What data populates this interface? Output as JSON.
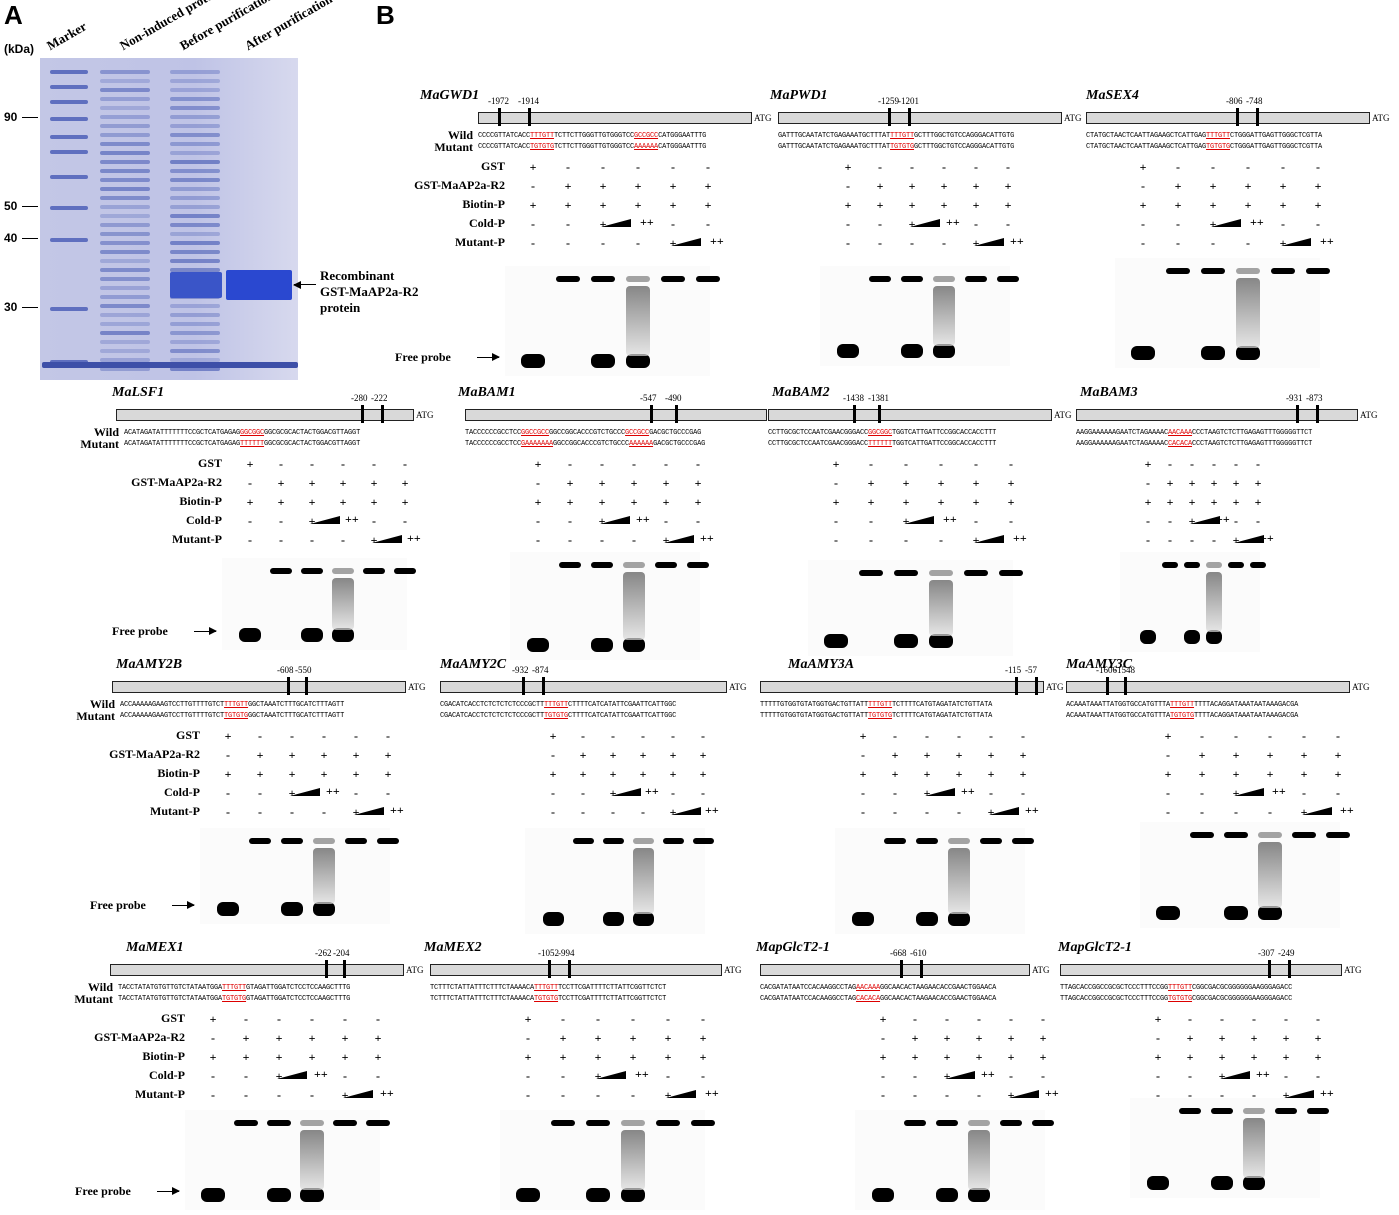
{
  "panelA": {
    "letter": "A",
    "unit": "(kDa)",
    "lanes": [
      "Marker",
      "Non-induced protein",
      "Before purification",
      "After purification"
    ],
    "markers": [
      "90",
      "50",
      "40",
      "30"
    ],
    "annotation": [
      "Recombinant",
      "GST-MaAP2a-R2",
      "protein"
    ]
  },
  "panelB": {
    "letter": "B",
    "row_labels": {
      "wild": "Wild",
      "mutant": "Mutant",
      "gst": "GST",
      "protein": "GST-MaAP2a-R2",
      "biotin": "Biotin-P",
      "cold": "Cold-P",
      "mutantp": "Mutant-P"
    },
    "free_probe": "Free probe",
    "atg": "ATG",
    "symbols": {
      "gst": [
        "+",
        "-",
        "-",
        "-",
        "-",
        "-"
      ],
      "protein": [
        "-",
        "+",
        "+",
        "+",
        "+",
        "+"
      ],
      "biotin": [
        "+",
        "+",
        "+",
        "+",
        "+",
        "+"
      ],
      "cold": [
        "-",
        "-",
        "+",
        "++",
        "-",
        "-"
      ],
      "mutantp": [
        "-",
        "-",
        "-",
        "-",
        "+",
        "++"
      ]
    },
    "genes": [
      {
        "name": "MaGWD1",
        "pos": [
          "-1972",
          "-1914"
        ],
        "wild": [
          "CCCCGTTATCACC",
          "TTTGTT",
          "TCTTCTTGGGTTGTGGGTCC",
          "GCCGCC",
          "CATGGGAATTTG"
        ],
        "mutant": [
          "CCCCGTTATCACC",
          "TGTGTG",
          "TCTTCTTGGGTTGTGGGTCC",
          "AAAAAA",
          "CATGGGAATTTG"
        ]
      },
      {
        "name": "MaPWD1",
        "pos": [
          "-1259",
          "-1201"
        ],
        "wild": [
          "GATTTGCAATATCTGAGAAATGCTTTAT",
          "TTTGTT",
          "GCTTTGGCTGTCCAGGGACATTGTG",
          "",
          ""
        ],
        "mutant": [
          "GATTTGCAATATCTGAGAAATGCTTTAT",
          "TGTGTG",
          "GCTTTGGCTGTCCAGGGACATTGTG",
          "",
          ""
        ]
      },
      {
        "name": "MaSEX4",
        "pos": [
          "-806",
          "-748"
        ],
        "wild": [
          "CTATGCTAACTCAATTAGAAGCTCATTGAG",
          "TTTGTT",
          "CTGGGATTGAGTTGGGCTCGTTA",
          "",
          ""
        ],
        "mutant": [
          "CTATGCTAACTCAATTAGAAGCTCATTGAG",
          "TGTGTG",
          "CTGGGATTGAGTTGGGCTCGTTA",
          "",
          ""
        ]
      },
      {
        "name": "MaLSF1",
        "pos": [
          "-280",
          "-222"
        ],
        "wild": [
          "ACATAGATATTTTTTTCCGCTCATGAGAG",
          "GGCGGC",
          "GGCGCGCACTACTGGACGTTAGGT",
          "",
          ""
        ],
        "mutant": [
          "ACATAGATATTTTTTTCCGCTCATGAGAG",
          "TTTTTT",
          "GGCGCGCACTACTGGACGTTAGGT",
          "",
          ""
        ]
      },
      {
        "name": "MaBAM1",
        "pos": [
          "-547",
          "-490"
        ],
        "wild": [
          "TACCCCCCGCCTCC",
          "GGCCGCC",
          "GGCCGGCACCCGTCTGCCC",
          "GCCGCC",
          "GACGCTGCCCGAG"
        ],
        "mutant": [
          "TACCCCCCGCCTCC",
          "GAAAAAAA",
          "GGCCGGCACCCGTCTGCCC",
          "AAAAAA",
          "GACGCTGCCCGAG"
        ]
      },
      {
        "name": "MaBAM2",
        "pos": [
          "-1438",
          "-1381"
        ],
        "wild": [
          "CCTTGCGCTCCAATCGAACGGGACC",
          "GGCGGC",
          "TGGTCATTGATTCCGGCACCACCTTT",
          "",
          ""
        ],
        "mutant": [
          "CCTTGCGCTCCAATCGAACGGGACC",
          "TTTTTT",
          "TGGTCATTGATTCCGGCACCACCTTT",
          "",
          ""
        ]
      },
      {
        "name": "MaBAM3",
        "pos": [
          "-931",
          "-873"
        ],
        "wild": [
          "AAGGAAAAAAGAATCTAGAAAAC",
          "AACAAA",
          "CCCTAAGTCTCTTGAGAGTTTGGGGGTTCT",
          "",
          ""
        ],
        "mutant": [
          "AAGGAAAAAAGAATCTAGAAAAC",
          "CACACA",
          "CCCTAAGTCTCTTGAGAGTTTGGGGGTTCT",
          "",
          ""
        ]
      },
      {
        "name": "MaAMY2B",
        "pos": [
          "-608",
          "-550"
        ],
        "wild": [
          "ACCAAAAAGAAGTCCTTGTTTTGTCT",
          "TTTGTT",
          "GGCTAAATCTTTGCATCTTTAGTT",
          "",
          ""
        ],
        "mutant": [
          "ACCAAAAAGAAGTCCTTGTTTTGTCT",
          "TGTGTG",
          "GGCTAAATCTTTGCATCTTTAGTT",
          "",
          ""
        ]
      },
      {
        "name": "MaAMY2C",
        "pos": [
          "-932",
          "-874"
        ],
        "wild": [
          "CGACATCACCTCTCTCTCTCCCGCTT",
          "TTTGTT",
          "CTTTTCATCATATTCGAATTCATTGGC",
          "",
          ""
        ],
        "mutant": [
          "CGACATCACCTCTCTCTCTCCCGCTT",
          "TGTGTG",
          "CTTTTCATCATATTCGAATTCATTGGC",
          "",
          ""
        ]
      },
      {
        "name": "MaAMY3A",
        "pos": [
          "-115",
          "-57"
        ],
        "wild": [
          "TTTTTGTGGTGTATGGTGACTGTTATT",
          "TTTGTT",
          "TCTTTTCATGTAGATATCTGTTATA",
          "",
          ""
        ],
        "mutant": [
          "TTTTTGTGGTGTATGGTGACTGTTATT",
          "TGTGTG",
          "TCTTTTCATGTAGATATCTGTTATA",
          "",
          ""
        ]
      },
      {
        "name": "MaAMY3C",
        "pos": [
          "-1606",
          "-1548"
        ],
        "wild": [
          "ACAAATAAATTATGGTGCCATGTTTA",
          "TTTGTT",
          "TTTTACAGGATAAATAATAAAGACGA",
          "",
          ""
        ],
        "mutant": [
          "ACAAATAAATTATGGTGCCATGTTTA",
          "TGTGTG",
          "TTTTACAGGATAAATAATAAAGACGA",
          "",
          ""
        ]
      },
      {
        "name": "MaMEX1",
        "pos": [
          "-262",
          "-204"
        ],
        "wild": [
          "TACCTATATGTGTTGTCTATAATGGA",
          "TTTGTT",
          "GTAGATTGGATCTCCTCCAAGCTTTG",
          "",
          ""
        ],
        "mutant": [
          "TACCTATATGTGTTGTCTATAATGGA",
          "TGTGTG",
          "GTAGATTGGATCTCCTCCAAGCTTTG",
          "",
          ""
        ]
      },
      {
        "name": "MaMEX2",
        "pos": [
          "-1052",
          "-994"
        ],
        "wild": [
          "TCTTTCTATTATTTCTTTCTAAAACA",
          "TTTGTT",
          "TCCTTCGATTTTCTTATTCGGTTCTCT",
          "",
          ""
        ],
        "mutant": [
          "TCTTTCTATTATTTCTTTCTAAAACA",
          "TGTGTG",
          "TCCTTCGATTTTCTTATTCGGTTCTCT",
          "",
          ""
        ]
      },
      {
        "name": "MapGlcT2-1",
        "pos": [
          "-668",
          "-610"
        ],
        "wild": [
          "CACGATATAATCCACAAGGCCTAG",
          "AACAAA",
          "GGCAACACTAAGAACACCGAACTGGAACA",
          "",
          ""
        ],
        "mutant": [
          "CACGATATAATCCACAAGGCCTAG",
          "CACACA",
          "GGCAACACTAAGAACACCGAACTGGAACA",
          "",
          ""
        ]
      },
      {
        "name": "MapGlcT2-1",
        "pos": [
          "-307",
          "-249"
        ],
        "wild": [
          "TTAGCACCGGCCGCGCTCCCTTTCCGG",
          "TTTGTT",
          "CGGCGACGCGGGGGGAAGGGAGACC",
          "",
          ""
        ],
        "mutant": [
          "TTAGCACCGGCCGCGCTCCCTTTCCGG",
          "TGTGTG",
          "CGGCGACGCGGGGGGAAGGGAGACC",
          "",
          ""
        ]
      }
    ]
  }
}
